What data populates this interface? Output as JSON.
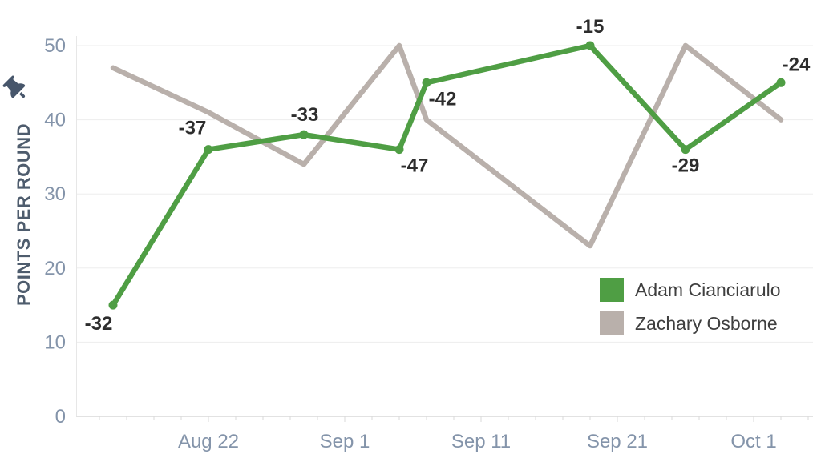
{
  "chart_data": {
    "type": "line",
    "title": "",
    "xlabel": "",
    "ylabel": "POINTS PER ROUND",
    "ylim": [
      0,
      55
    ],
    "y_ticks": [
      0,
      10,
      20,
      30,
      40,
      50
    ],
    "x_ticks": [
      {
        "label": "Aug 22",
        "day": 0
      },
      {
        "label": "Sep 1",
        "day": 10
      },
      {
        "label": "Sep 11",
        "day": 20
      },
      {
        "label": "Sep 21",
        "day": 30
      },
      {
        "label": "Oct 1",
        "day": 40
      }
    ],
    "grid": "horizontal",
    "legend_position": "inside-right-lower",
    "series": [
      {
        "name": "Adam Cianciarulo",
        "color": "#4f9e44",
        "markers": true,
        "points": [
          {
            "day": -7,
            "date_est": "Aug 15",
            "value": 15,
            "data_label": "-32",
            "label_dx": -18,
            "label_dy": 31
          },
          {
            "day": 0,
            "date_est": "Aug 22",
            "value": 36,
            "data_label": "-37",
            "label_dx": -20,
            "label_dy": -19
          },
          {
            "day": 7,
            "date_est": "Aug 29",
            "value": 38,
            "data_label": "-33",
            "label_dx": 1,
            "label_dy": -17
          },
          {
            "day": 14,
            "date_est": "Sep 5",
            "value": 36,
            "data_label": "-47",
            "label_dx": 19,
            "label_dy": 28
          },
          {
            "day": 16,
            "date_est": "Sep 7",
            "value": 45,
            "data_label": "-42",
            "label_dx": 20,
            "label_dy": 28
          },
          {
            "day": 28,
            "date_est": "Sep 19",
            "value": 50,
            "data_label": "-15",
            "label_dx": 0,
            "label_dy": -16
          },
          {
            "day": 35,
            "date_est": "Sep 26",
            "value": 36,
            "data_label": "-29",
            "label_dx": 0,
            "label_dy": 28
          },
          {
            "day": 42,
            "date_est": "Oct 3",
            "value": 45,
            "data_label": "-24",
            "label_dx": 19,
            "label_dy": -15
          }
        ]
      },
      {
        "name": "Zachary Osborne",
        "color": "#b9b0ab",
        "markers": false,
        "points": [
          {
            "day": -7,
            "date_est": "Aug 15",
            "value": 47
          },
          {
            "day": 0,
            "date_est": "Aug 22",
            "value": 41
          },
          {
            "day": 7,
            "date_est": "Aug 29",
            "value": 34
          },
          {
            "day": 14,
            "date_est": "Sep 5",
            "value": 50
          },
          {
            "day": 16,
            "date_est": "Sep 7",
            "value": 40
          },
          {
            "day": 28,
            "date_est": "Sep 19",
            "value": 23
          },
          {
            "day": 35,
            "date_est": "Sep 26",
            "value": 50
          },
          {
            "day": 42,
            "date_est": "Oct 3",
            "value": 40
          }
        ]
      }
    ],
    "colors": {
      "tick_label": "#8494aa",
      "axis_title": "#4e5c6d",
      "data_label": "#2d2d2d",
      "gridline": "#ededed",
      "axis_line": "#d9d9d9",
      "legend_text": "#3f3f3f",
      "pin_icon": "#47566b"
    }
  }
}
